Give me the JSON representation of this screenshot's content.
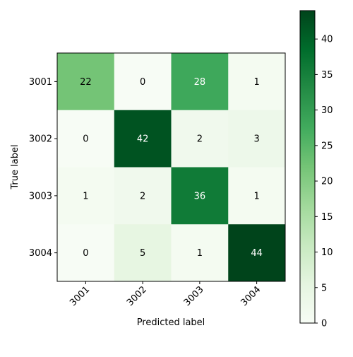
{
  "chart_data": {
    "type": "heatmap",
    "title": "",
    "xlabel": "Predicted label",
    "ylabel": "True label",
    "x_categories": [
      "3001",
      "3002",
      "3003",
      "3004"
    ],
    "y_categories": [
      "3001",
      "3002",
      "3003",
      "3004"
    ],
    "matrix": [
      [
        22,
        0,
        28,
        1
      ],
      [
        0,
        42,
        2,
        3
      ],
      [
        1,
        2,
        36,
        1
      ],
      [
        0,
        5,
        1,
        44
      ]
    ],
    "colormap": "Greens",
    "vmin": 0,
    "vmax": 44,
    "colorbar_ticks": [
      0,
      5,
      10,
      15,
      20,
      25,
      30,
      35,
      40
    ],
    "text_color_light": "#ffffff",
    "text_color_dark": "#000000"
  }
}
